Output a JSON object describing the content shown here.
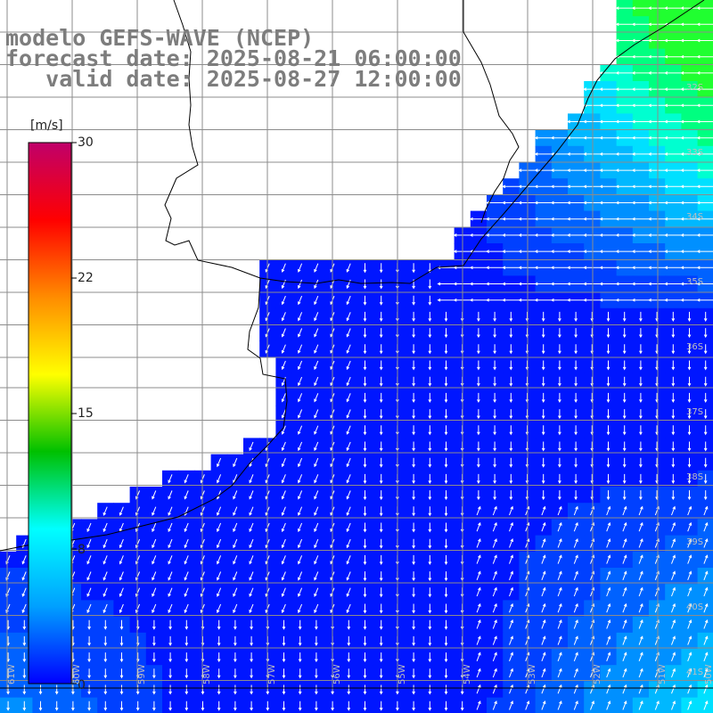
{
  "title": {
    "line1": "modelo GEFS-WAVE (NCEP)",
    "line2": "forecast date: 2025-08-21 06:00:00",
    "line3": "   valid date: 2025-08-27 12:00:00"
  },
  "colorbar": {
    "unit": "[m/s]",
    "ticks": [
      "30",
      "22",
      "15",
      "8",
      "0"
    ],
    "tick_values": [
      30,
      22,
      15,
      8,
      0
    ],
    "colors": [
      "#c0006a",
      "#ff0000",
      "#ff8c00",
      "#ffff00",
      "#00c000",
      "#00ffff",
      "#00a0ff",
      "#0000ff"
    ]
  },
  "lat_labels": [
    "32S",
    "33S",
    "34S",
    "35S",
    "36S",
    "37S",
    "38S",
    "39S",
    "40S",
    "41S"
  ],
  "lon_labels": [
    "61W",
    "60W",
    "59W",
    "58W",
    "57W",
    "56W",
    "55W",
    "54W",
    "53W",
    "52W",
    "51W",
    "50W"
  ],
  "colors": {
    "land": "#ffffff",
    "grid": "#8c8c8c",
    "coast": "#000000",
    "arrow": "#ffffff"
  }
}
